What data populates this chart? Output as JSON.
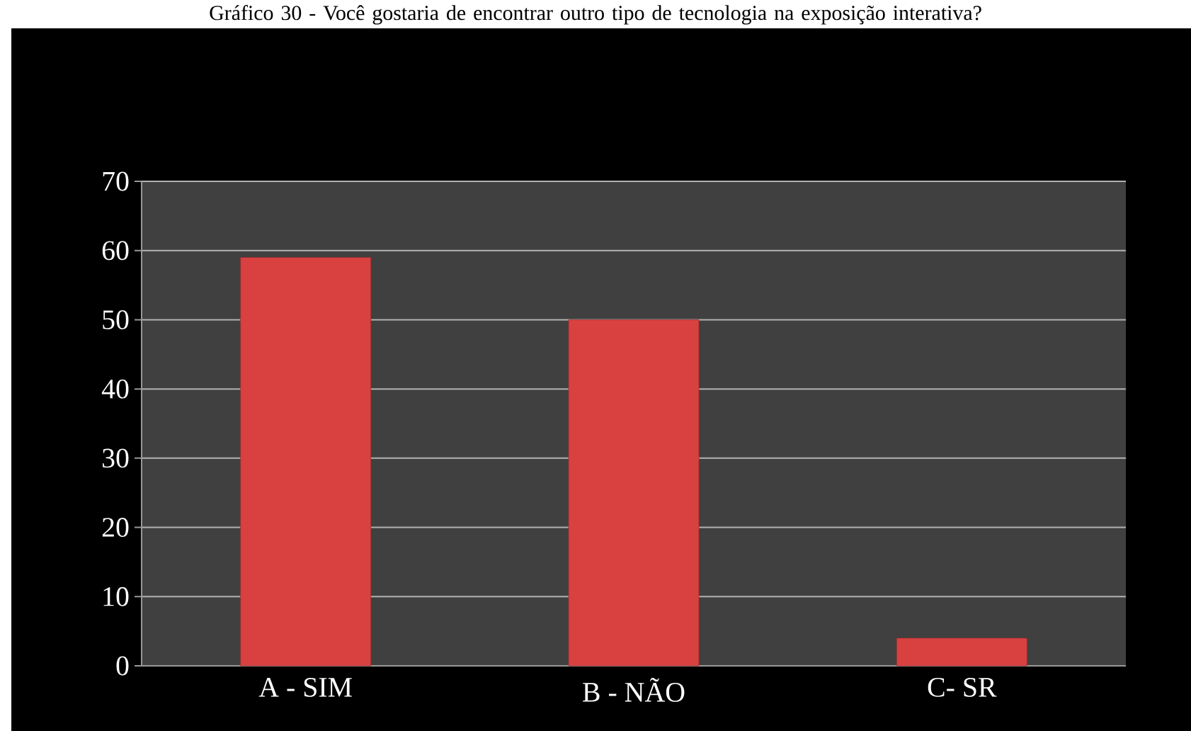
{
  "chart_data": {
    "type": "bar",
    "title": "Gráfico 30 - Você gostaria de encontrar outro tipo de tecnologia na exposição interativa?",
    "categories": [
      "A - SIM",
      "B - NÃO",
      "C- SR"
    ],
    "values": [
      59,
      50,
      4
    ],
    "color": "#d94141",
    "ylim": [
      0,
      70
    ],
    "yticks": [
      0,
      10,
      20,
      30,
      40,
      50,
      60,
      70
    ],
    "grid": "y"
  }
}
